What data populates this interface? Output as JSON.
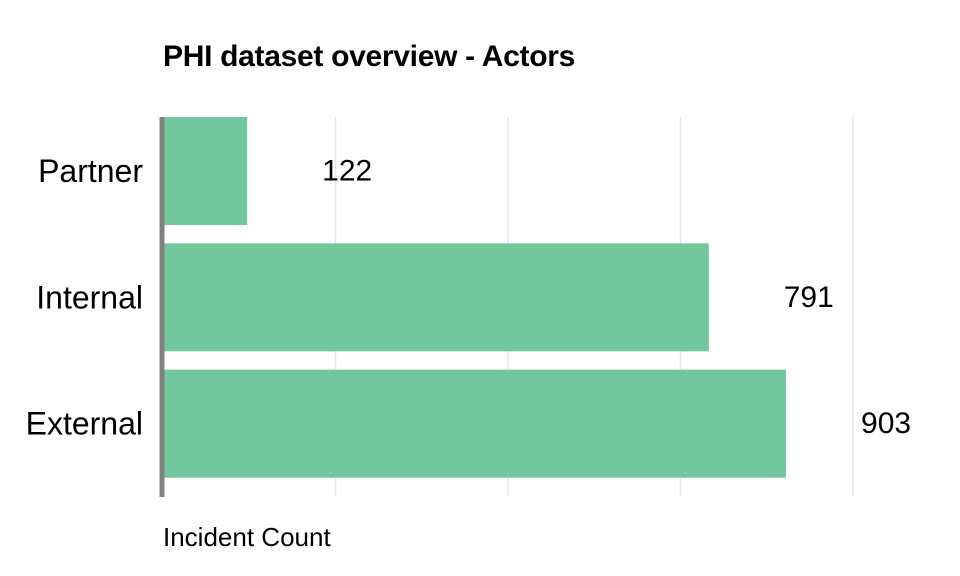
{
  "chart_data": {
    "type": "bar",
    "orientation": "horizontal",
    "title": "PHI dataset overview - Actors",
    "xlabel": "Incident Count",
    "ylabel": "",
    "categories": [
      "Partner",
      "Internal",
      "External"
    ],
    "values": [
      122,
      791,
      903
    ],
    "xlim": [
      0,
      1000
    ],
    "grid": true,
    "data_labels": true,
    "colors": {
      "bar": "#73c79c",
      "grid": "#e6e6e6",
      "axis": "#808080"
    }
  }
}
